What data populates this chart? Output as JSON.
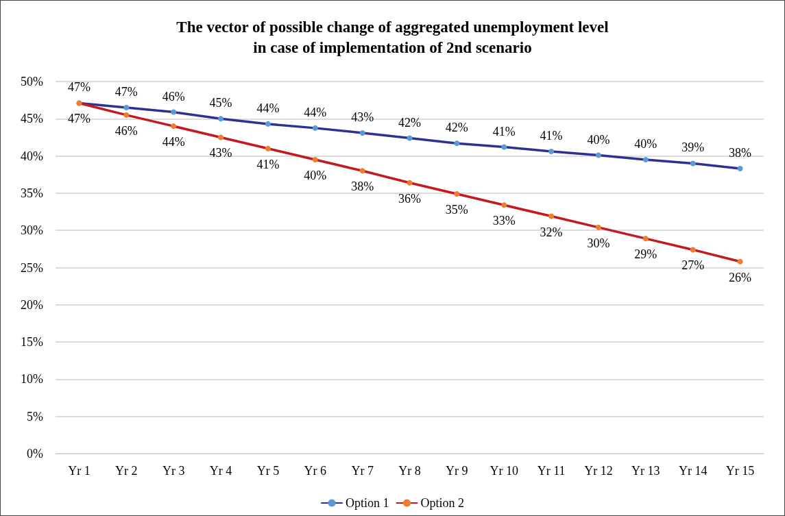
{
  "chart_data": {
    "type": "line",
    "title": "The vector of possible change of aggregated unemployment level\nin case of implementation of 2nd scenario",
    "categories": [
      "Yr 1",
      "Yr 2",
      "Yr 3",
      "Yr 4",
      "Yr 5",
      "Yr 6",
      "Yr 7",
      "Yr 8",
      "Yr 9",
      "Yr 10",
      "Yr 11",
      "Yr 12",
      "Yr 13",
      "Yr 14",
      "Yr 15"
    ],
    "series": [
      {
        "name": "Option 1",
        "color": "#2e3192",
        "colors": [
          "#5b9bd5",
          "#5b9bd5",
          "#5b9bd5",
          "#5b9bd5",
          "#5b9bd5",
          "#5b9bd5",
          "#5b9bd5",
          "#5b9bd5",
          "#5b9bd5",
          "#5b9bd5",
          "#5b9bd5",
          "#5b9bd5",
          "#5b9bd5",
          "#5b9bd5",
          "#5b9bd5"
        ],
        "values": [
          47.1,
          46.5,
          45.9,
          45.0,
          44.3,
          43.75,
          43.1,
          42.4,
          41.7,
          41.2,
          40.6,
          40.1,
          39.5,
          39.0,
          38.3
        ],
        "value_labels": [
          "47%",
          "47%",
          "46%",
          "45%",
          "44%",
          "44%",
          "43%",
          "42%",
          "42%",
          "41%",
          "41%",
          "40%",
          "40%",
          "39%",
          "38%"
        ]
      },
      {
        "name": "Option 2",
        "color": "#c5181f",
        "colors": [
          "#ed7d31",
          "#ed7d31",
          "#ed7d31",
          "#ed7d31",
          "#ed7d31",
          "#ed7d31",
          "#ed7d31",
          "#ed7d31",
          "#ed7d31",
          "#ed7d31",
          "#ed7d31",
          "#ed7d31",
          "#ed7d31",
          "#ed7d31",
          "#ed7d31"
        ],
        "values": [
          47.1,
          45.5,
          44.0,
          42.5,
          41.0,
          39.5,
          38.0,
          36.4,
          34.9,
          33.4,
          31.9,
          30.4,
          28.9,
          27.4,
          25.8
        ],
        "value_labels": [
          "47%",
          "46%",
          "44%",
          "43%",
          "41%",
          "40%",
          "38%",
          "36%",
          "35%",
          "33%",
          "32%",
          "30%",
          "29%",
          "27%",
          "26%"
        ]
      }
    ],
    "ylim": [
      0,
      50
    ],
    "yticks": [
      {
        "value": 0,
        "label": "0%"
      },
      {
        "value": 5,
        "label": "5%"
      },
      {
        "value": 10,
        "label": "10%"
      },
      {
        "value": 15,
        "label": "15%"
      },
      {
        "value": 20,
        "label": "20%"
      },
      {
        "value": 25,
        "label": "25%"
      },
      {
        "value": 30,
        "label": "30%"
      },
      {
        "value": 35,
        "label": "35%"
      },
      {
        "value": 40,
        "label": "40%"
      },
      {
        "value": 45,
        "label": "45%"
      },
      {
        "value": 50,
        "label": "50%"
      }
    ],
    "grid": "y",
    "legend": "bottom",
    "marker": "circle",
    "line_style": "solid"
  }
}
